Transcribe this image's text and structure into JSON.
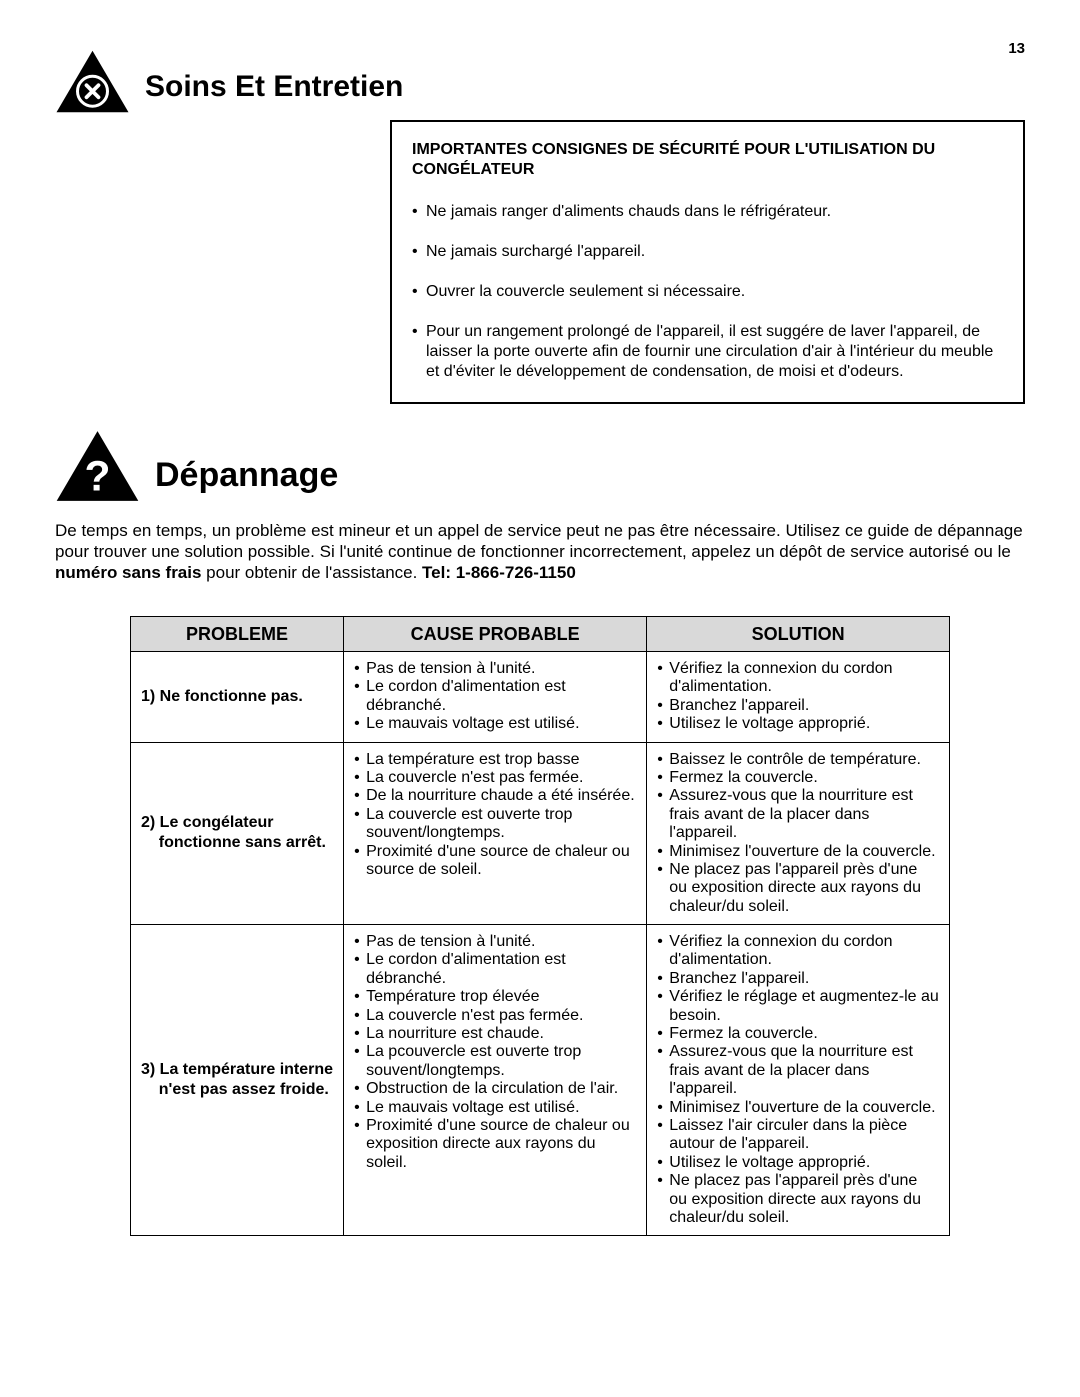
{
  "page_number": "13",
  "section1": {
    "title": "Soins Et Entretien",
    "safety_heading": "IMPORTANTES CONSIGNES DE SÉCURITÉ POUR L'UTILISATION DU CONGÉLATEUR",
    "items": [
      "Ne jamais ranger d'aliments chauds   dans le réfrigérateur.",
      "Ne jamais surchargé l'appareil.",
      "Ouvrer la couvercle seulement si nécessaire.",
      "Pour un rangement prolongé de l'appareil, il est suggére de laver l'appareil, de laisser la porte ouverte afin de fournir une circulation d'air à l'intérieur du meuble et d'éviter le développement de condensation, de moisi et d'odeurs."
    ]
  },
  "section2": {
    "title": "Dépannage",
    "intro_a": "De temps en temps, un problème est mineur et un appel de service peut ne pas être nécessaire. Utilisez ce guide de dépannage pour trouver une solution possible.  Si l'unité continue de fonctionner incorrectement, appelez un dépôt de service autorisé ou le ",
    "intro_bold1": "numéro sans frais",
    "intro_b": "  pour obtenir de l'assistance.   ",
    "intro_bold2": "Tel: 1-866-726-1150"
  },
  "table": {
    "headers": {
      "c1": "PROBLEME",
      "c2": "CAUSE PROBABLE",
      "c3": "SOLUTION"
    },
    "rows": [
      {
        "problem": "1) Ne fonctionne pas.",
        "causes": [
          "Pas de tension à l'unité.",
          "Le cordon d'alimentation est débranché.",
          "Le mauvais voltage est utilisé."
        ],
        "solutions": [
          "Vérifiez la connexion du cordon d'alimentation.",
          "Branchez l'appareil.",
          "Utilisez le voltage approprié."
        ]
      },
      {
        "problem": "2) Le congélateur\n    fonctionne sans arrêt.",
        "causes": [
          "La température est trop basse",
          "La couvercle n'est pas fermée.",
          "De la nourriture chaude a été insérée.",
          "La couvercle est ouverte trop souvent/longtemps.",
          "Proximité d'une source de chaleur ou source de soleil."
        ],
        "solutions": [
          "Baissez le contrôle de température.",
          "Fermez la couvercle.",
          "Assurez-vous que la nourriture est frais avant de la placer dans l'appareil.",
          "Minimisez l'ouverture de la couvercle.",
          "Ne placez pas l'appareil près d'une ou exposition directe aux rayons du chaleur/du soleil."
        ]
      },
      {
        "problem": "3) La température interne\n    n'est pas assez froide.",
        "causes": [
          "Pas de tension à l'unité.",
          "Le cordon d'alimentation est débranché.",
          "Température trop élevée",
          "La couvercle n'est pas fermée.",
          "La nourriture est chaude.",
          "La pcouvercle est ouverte trop souvent/longtemps.",
          "Obstruction de la circulation de l'air.",
          "Le mauvais voltage est utilisé.",
          "Proximité d'une source de chaleur ou exposition directe aux rayons du soleil."
        ],
        "solutions": [
          "Vérifiez la connexion du cordon d'alimentation.",
          "Branchez l'appareil.",
          "Vérifiez le réglage et augmentez-le au besoin.",
          "Fermez la couvercle.",
          "Assurez-vous que la nourriture est frais avant de la placer dans l'appareil.",
          "Minimisez l'ouverture de la couvercle.",
          "Laissez l'air circuler dans la pièce autour de l'appareil.",
          "Utilisez le voltage approprié.",
          "Ne placez pas l'appareil près d'une ou exposition directe aux rayons du chaleur/du soleil."
        ]
      }
    ]
  },
  "colors": {
    "header_bg": "#d9d9d9",
    "black": "#000000",
    "white": "#ffffff"
  }
}
